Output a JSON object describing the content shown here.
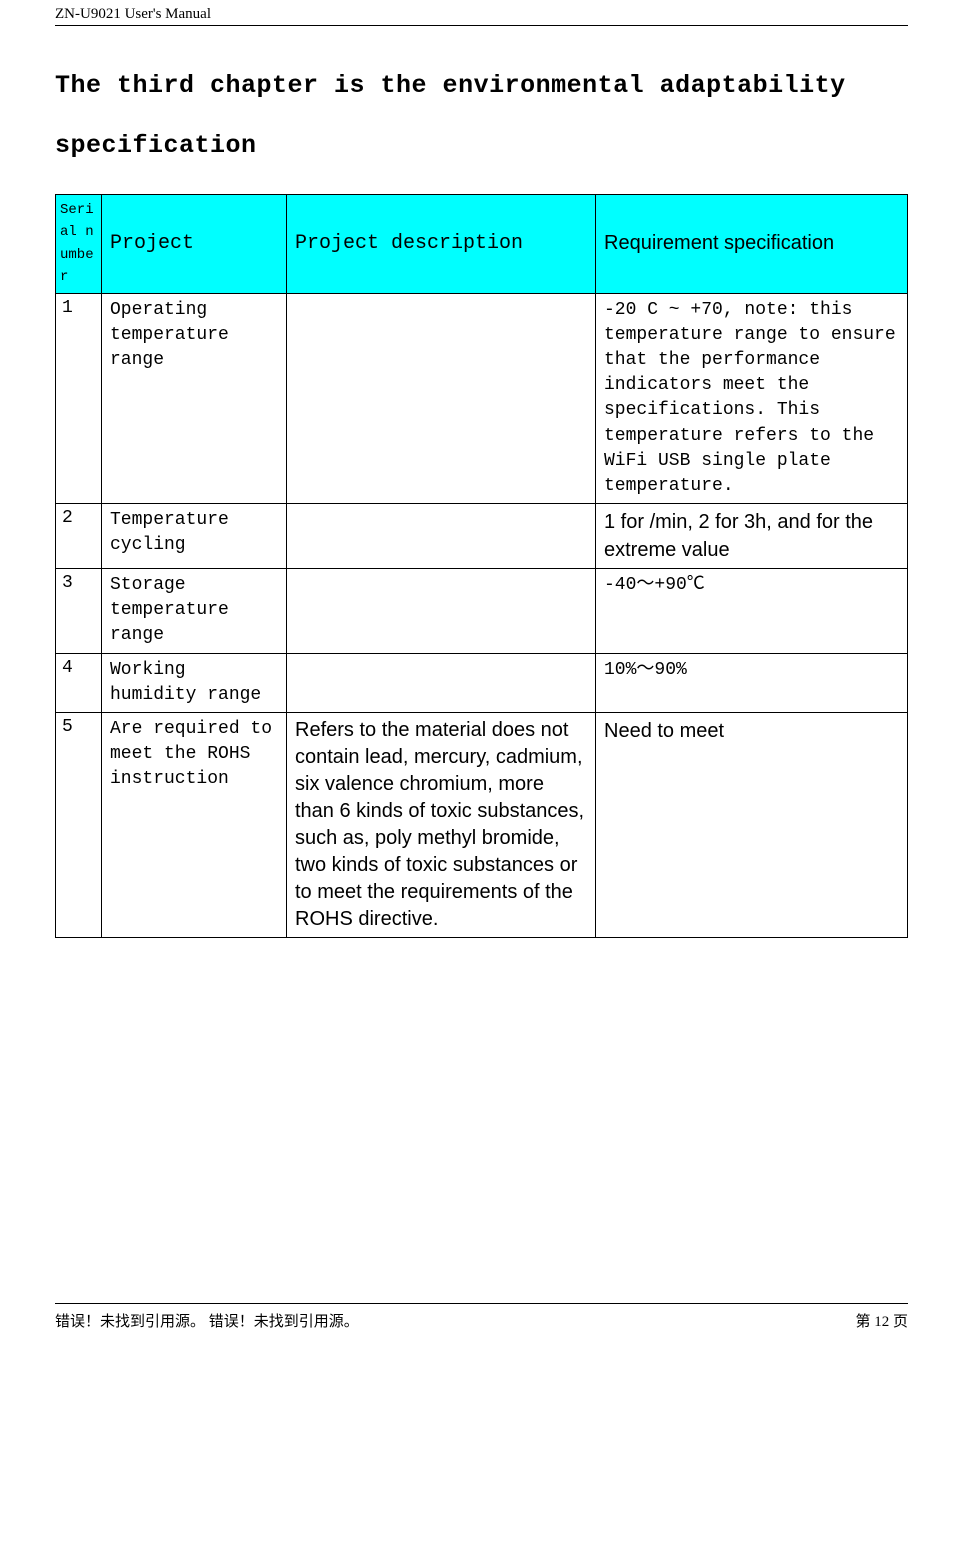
{
  "header_text": "ZN-U9021 User's Manual",
  "chapter_title": "The third chapter is the environmental adaptability specification",
  "table": {
    "header_bg": "#00ffff",
    "headers": {
      "serial": "Serial number",
      "project": "Project",
      "desc": "Project description",
      "req": "Requirement specification"
    },
    "rows": [
      {
        "serial": "1",
        "project": "Operating temperature range",
        "desc": "",
        "req": "-20 C ~ +70, note: this temperature range to ensure that the performance indicators meet the specifications. This temperature refers to the WiFi USB single plate temperature.",
        "req_sans": false
      },
      {
        "serial": "2",
        "project": "Temperature cycling",
        "desc": "",
        "req": "1 for /min, 2 for 3h, and for the extreme value",
        "req_sans": true
      },
      {
        "serial": "3",
        "project": "Storage temperature range",
        "desc": "",
        "req": "-40～+90℃",
        "req_sans": false
      },
      {
        "serial": "4",
        "project": "Working humidity range",
        "desc": "",
        "req": "10%～90%",
        "req_sans": false
      },
      {
        "serial": "5",
        "project": "Are required to meet the ROHS instruction",
        "desc": "Refers to the material does not contain lead, mercury, cadmium, six valence chromium, more than 6 kinds of toxic substances, such as, poly methyl bromide, two kinds of toxic substances or to meet the requirements of the ROHS directive.",
        "req": "Need to meet",
        "req_sans": true
      }
    ]
  },
  "footer": {
    "left": "错误！未找到引用源。  错误！未找到引用源。",
    "right": "第 12 页"
  }
}
